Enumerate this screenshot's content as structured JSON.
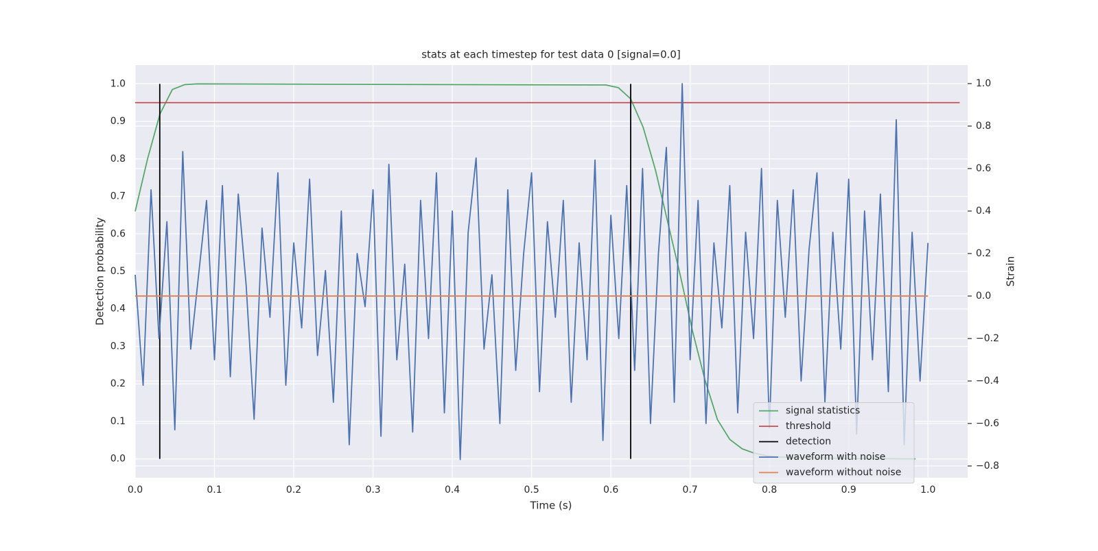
{
  "chart_data": {
    "type": "line",
    "title": "stats at each timestep for test data 0 [signal=0.0]",
    "xlabel": "Time (s)",
    "ylabel": "Detection probability",
    "y2label": "Strain",
    "xlim": [
      0,
      1.05
    ],
    "ylim": [
      -0.05,
      1.05
    ],
    "y2lim": [
      -0.855,
      1.087
    ],
    "xticks": [
      {
        "value": 0,
        "label": "0.0"
      },
      0.1,
      0.2,
      0.3,
      0.4,
      0.5,
      0.6,
      0.7,
      0.8,
      0.9,
      {
        "value": 1,
        "label": "1.0"
      }
    ],
    "yticks": [
      {
        "value": 0,
        "label": "0.0"
      },
      0.1,
      0.2,
      0.3,
      0.4,
      0.5,
      0.6,
      0.7,
      0.8,
      0.9,
      {
        "value": 1,
        "label": "1.0"
      }
    ],
    "y2ticks": [
      {
        "value": -0.8,
        "label": "−0.8"
      },
      {
        "value": -0.6,
        "label": "−0.6"
      },
      {
        "value": -0.4,
        "label": "−0.4"
      },
      {
        "value": -0.2,
        "label": "−0.2"
      },
      {
        "value": 0,
        "label": "0.0"
      },
      0.2,
      0.4,
      0.6,
      0.8,
      {
        "value": 1,
        "label": "1.0"
      }
    ],
    "grid": true,
    "legend": "lower right",
    "series": [
      {
        "name": "signal statistics",
        "color": "#55a868",
        "axis": "y",
        "x": [
          0,
          0.0156,
          0.0313,
          0.0469,
          0.0625,
          0.0781,
          0.5938,
          0.6094,
          0.625,
          0.6406,
          0.6563,
          0.6719,
          0.6875,
          0.7031,
          0.7188,
          0.7344,
          0.75,
          0.7656,
          0.7813,
          0.7969,
          0.8125,
          0.8438,
          0.875,
          0.9063,
          0.9375,
          0.9688,
          0.9844
        ],
        "values": [
          0.66,
          0.8,
          0.92,
          0.985,
          0.998,
          1.0,
          0.997,
          0.99,
          0.96,
          0.885,
          0.77,
          0.63,
          0.49,
          0.34,
          0.21,
          0.105,
          0.052,
          0.027,
          0.015,
          0.008,
          0.005,
          0.003,
          0.002,
          0.001,
          0.001,
          0.0,
          0.0
        ]
      },
      {
        "name": "threshold",
        "color": "#c44e52",
        "axis": "y",
        "x": [
          0,
          1.04
        ],
        "values": [
          0.95,
          0.95
        ]
      },
      {
        "name": "detection",
        "color": "#000000",
        "axis": "y",
        "style": "vlines",
        "x": [
          0.031,
          0.625
        ],
        "ymin": 0,
        "ymax": 1
      },
      {
        "name": "waveform with noise",
        "color": "#4c72b0",
        "axis": "y2",
        "x": [
          0,
          0.01,
          0.02,
          0.03,
          0.04,
          0.05,
          0.06,
          0.07,
          0.08,
          0.09,
          0.1,
          0.11,
          0.12,
          0.13,
          0.14,
          0.15,
          0.16,
          0.17,
          0.18,
          0.19,
          0.2,
          0.21,
          0.22,
          0.23,
          0.24,
          0.25,
          0.26,
          0.27,
          0.28,
          0.29,
          0.3,
          0.31,
          0.32,
          0.33,
          0.34,
          0.35,
          0.36,
          0.37,
          0.38,
          0.39,
          0.4,
          0.41,
          0.42,
          0.43,
          0.44,
          0.45,
          0.46,
          0.47,
          0.48,
          0.49,
          0.5,
          0.51,
          0.52,
          0.53,
          0.54,
          0.55,
          0.56,
          0.57,
          0.58,
          0.59,
          0.6,
          0.61,
          0.62,
          0.63,
          0.64,
          0.65,
          0.66,
          0.67,
          0.68,
          0.69,
          0.7,
          0.71,
          0.72,
          0.73,
          0.74,
          0.75,
          0.76,
          0.77,
          0.78,
          0.79,
          0.8,
          0.81,
          0.82,
          0.83,
          0.84,
          0.85,
          0.86,
          0.87,
          0.88,
          0.89,
          0.9,
          0.91,
          0.92,
          0.93,
          0.94,
          0.95,
          0.96,
          0.97,
          0.98,
          0.99,
          1.0
        ],
        "values": [
          0.1,
          -0.42,
          0.5,
          -0.2,
          0.35,
          -0.63,
          0.68,
          -0.25,
          0.1,
          0.45,
          -0.3,
          0.52,
          -0.38,
          0.48,
          0.05,
          -0.58,
          0.32,
          -0.1,
          0.58,
          -0.42,
          0.25,
          -0.15,
          0.55,
          -0.28,
          0.12,
          -0.5,
          0.4,
          -0.7,
          0.2,
          -0.05,
          0.5,
          -0.66,
          0.62,
          -0.3,
          0.15,
          -0.64,
          0.45,
          -0.2,
          0.58,
          -0.55,
          0.4,
          -0.77,
          0.3,
          0.65,
          -0.25,
          0.1,
          -0.6,
          0.5,
          -0.35,
          0.2,
          0.58,
          -0.45,
          0.35,
          -0.1,
          0.45,
          -0.5,
          0.25,
          -0.3,
          0.64,
          -0.68,
          0.38,
          -0.2,
          0.52,
          -0.35,
          0.6,
          -0.6,
          0.2,
          0.7,
          -0.5,
          1.0,
          -0.3,
          0.45,
          -0.6,
          0.25,
          -0.15,
          0.52,
          -0.55,
          0.3,
          -0.2,
          0.6,
          -0.62,
          0.45,
          -0.1,
          0.5,
          -0.4,
          0.22,
          0.58,
          -0.5,
          0.3,
          -0.25,
          0.55,
          -0.65,
          0.4,
          -0.3,
          0.48,
          -0.45,
          0.83,
          -0.7,
          0.3,
          -0.4,
          0.25
        ]
      },
      {
        "name": "waveform without noise",
        "color": "#dd8452",
        "axis": "y2",
        "x": [
          0,
          1.0
        ],
        "values": [
          0,
          0
        ]
      }
    ]
  }
}
